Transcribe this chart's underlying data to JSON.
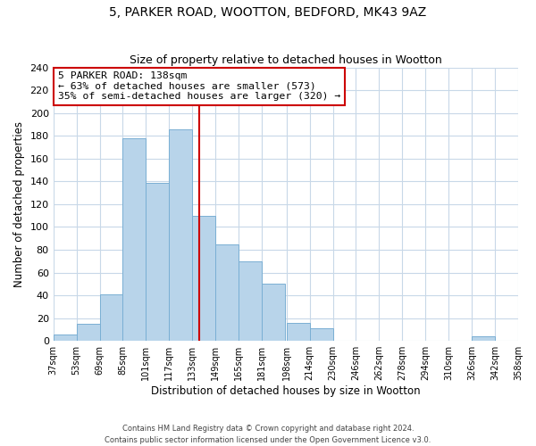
{
  "title": "5, PARKER ROAD, WOOTTON, BEDFORD, MK43 9AZ",
  "subtitle": "Size of property relative to detached houses in Wootton",
  "xlabel": "Distribution of detached houses by size in Wootton",
  "ylabel": "Number of detached properties",
  "bar_color": "#b8d4ea",
  "bar_edge_color": "#7aafd4",
  "background_color": "#ffffff",
  "grid_color": "#c8d8e8",
  "bin_edges": [
    37,
    53,
    69,
    85,
    101,
    117,
    133,
    149,
    165,
    181,
    198,
    214,
    230,
    246,
    262,
    278,
    294,
    310,
    326,
    342,
    358
  ],
  "bin_labels": [
    "37sqm",
    "53sqm",
    "69sqm",
    "85sqm",
    "101sqm",
    "117sqm",
    "133sqm",
    "149sqm",
    "165sqm",
    "181sqm",
    "198sqm",
    "214sqm",
    "230sqm",
    "246sqm",
    "262sqm",
    "278sqm",
    "294sqm",
    "310sqm",
    "326sqm",
    "342sqm",
    "358sqm"
  ],
  "counts": [
    6,
    15,
    41,
    178,
    139,
    186,
    110,
    85,
    70,
    50,
    16,
    11,
    0,
    0,
    0,
    0,
    0,
    0,
    4,
    0,
    0
  ],
  "vline_x": 138,
  "vline_color": "#cc0000",
  "annotation_title": "5 PARKER ROAD: 138sqm",
  "annotation_line1": "← 63% of detached houses are smaller (573)",
  "annotation_line2": "35% of semi-detached houses are larger (320) →",
  "annotation_box_color": "#ffffff",
  "annotation_box_edge": "#cc0000",
  "ylim": [
    0,
    240
  ],
  "yticks": [
    0,
    20,
    40,
    60,
    80,
    100,
    120,
    140,
    160,
    180,
    200,
    220,
    240
  ],
  "footer_line1": "Contains HM Land Registry data © Crown copyright and database right 2024.",
  "footer_line2": "Contains public sector information licensed under the Open Government Licence v3.0."
}
